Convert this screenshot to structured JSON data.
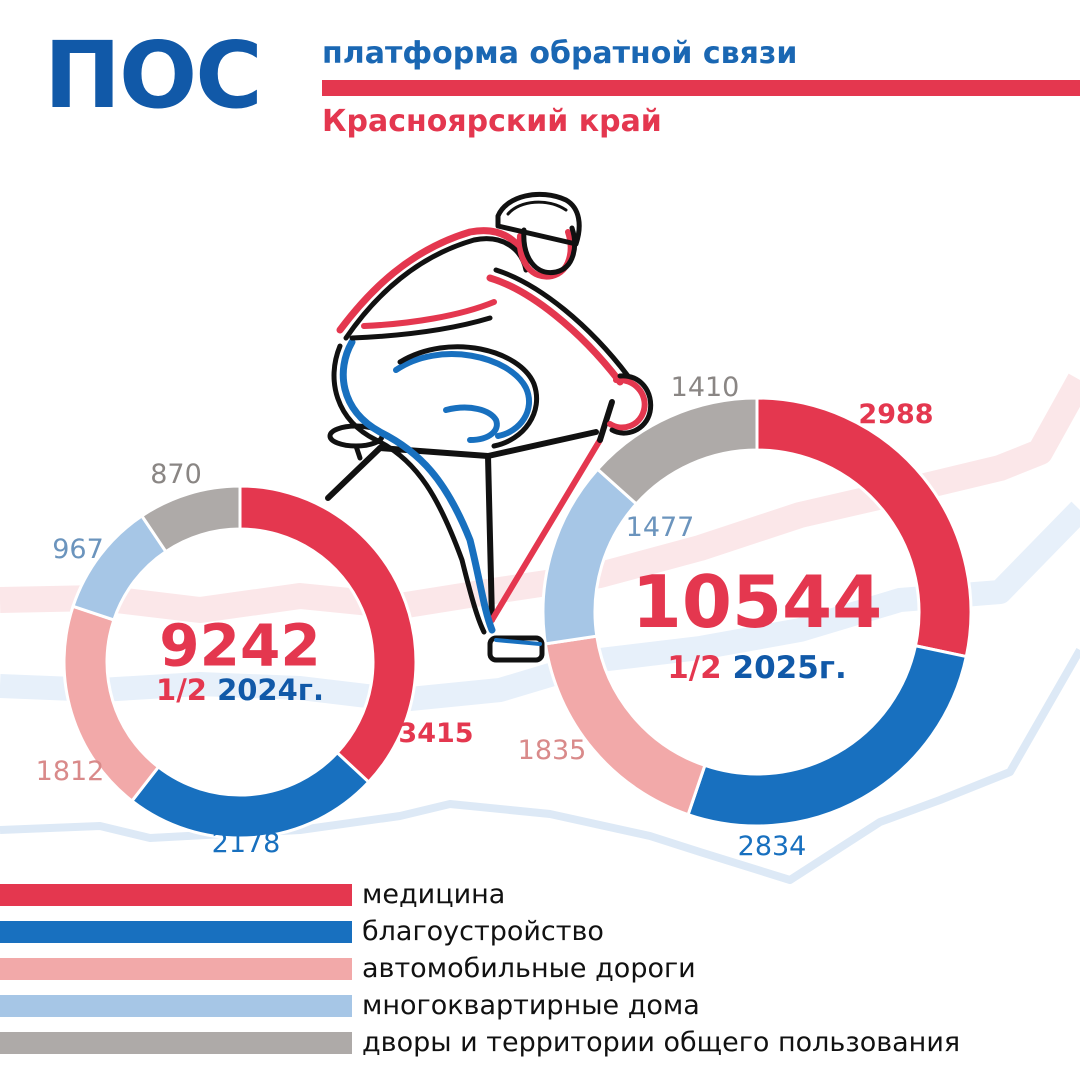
{
  "header": {
    "logo": "ПОС",
    "subtitle": "платформа обратной связи",
    "region": "Красноярский край"
  },
  "colors": {
    "red": "#e4374f",
    "blue": "#1870bf",
    "pink": "#f2a9a9",
    "lightblue": "#a6c6e6",
    "gray": "#aeaaa8",
    "navy": "#1159a8"
  },
  "illustration": "cyclist-icon",
  "chart_data": [
    {
      "type": "donut",
      "center_value": "9242",
      "center_period_prefix": "1/2",
      "center_period_year": "2024г.",
      "series": [
        {
          "name": "медицина",
          "value": 3415,
          "color": "#e4374f"
        },
        {
          "name": "благоустройство",
          "value": 2178,
          "color": "#1870bf"
        },
        {
          "name": "автомобильные дороги",
          "value": 1812,
          "color": "#f2a9a9"
        },
        {
          "name": "многоквартирные дома",
          "value": 967,
          "color": "#a6c6e6"
        },
        {
          "name": "дворы и территории общего пользования",
          "value": 870,
          "color": "#aeaaa8"
        }
      ]
    },
    {
      "type": "donut",
      "center_value": "10544",
      "center_period_prefix": "1/2",
      "center_period_year": "2025г.",
      "series": [
        {
          "name": "медицина",
          "value": 2988,
          "color": "#e4374f"
        },
        {
          "name": "благоустройство",
          "value": 2834,
          "color": "#1870bf"
        },
        {
          "name": "автомобильные дороги",
          "value": 1835,
          "color": "#f2a9a9"
        },
        {
          "name": "многоквартирные дома",
          "value": 1477,
          "color": "#a6c6e6"
        },
        {
          "name": "дворы и территории общего пользования",
          "value": 1410,
          "color": "#aeaaa8"
        }
      ]
    }
  ],
  "legend": [
    {
      "label": "медицина",
      "color": "#e4374f"
    },
    {
      "label": "благоустройство",
      "color": "#1870bf"
    },
    {
      "label": "автомобильные дороги",
      "color": "#f2a9a9"
    },
    {
      "label": "многоквартирные дома",
      "color": "#a6c6e6"
    },
    {
      "label": "дворы и территории общего пользования",
      "color": "#aeaaa8"
    }
  ]
}
